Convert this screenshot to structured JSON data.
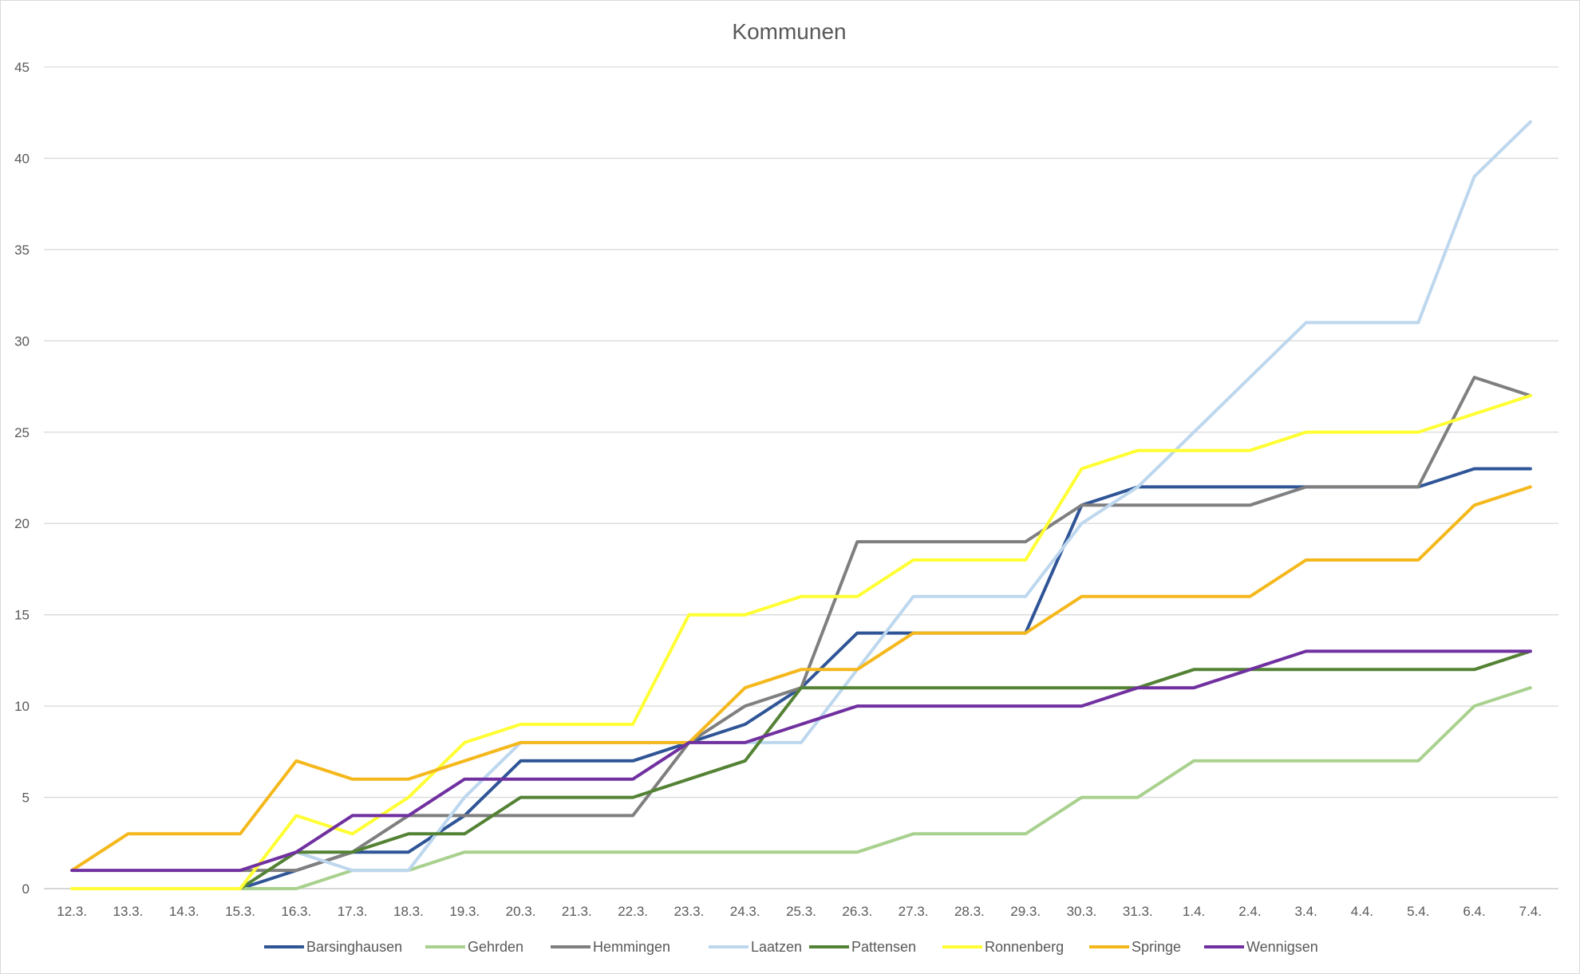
{
  "chart_data": {
    "type": "line",
    "title": "Kommunen",
    "xlabel": "",
    "ylabel": "",
    "ylim": [
      0,
      45
    ],
    "yticks": [
      0,
      5,
      10,
      15,
      20,
      25,
      30,
      35,
      40,
      45
    ],
    "grid": true,
    "legend": "bottom",
    "categories": [
      "12.3.",
      "13.3.",
      "14.3.",
      "15.3.",
      "16.3.",
      "17.3.",
      "18.3.",
      "19.3.",
      "20.3.",
      "21.3.",
      "22.3.",
      "23.3.",
      "24.3.",
      "25.3.",
      "26.3.",
      "27.3.",
      "28.3.",
      "29.3.",
      "30.3.",
      "31.3.",
      "1.4.",
      "2.4.",
      "3.4.",
      "4.4.",
      "5.4.",
      "6.4.",
      "7.4."
    ],
    "series": [
      {
        "name": "Barsinghausen",
        "color": "#2f5597",
        "values": [
          null,
          null,
          null,
          0,
          1,
          2,
          2,
          4,
          7,
          7,
          7,
          8,
          9,
          11,
          14,
          14,
          14,
          14,
          21,
          22,
          22,
          22,
          22,
          22,
          22,
          23,
          23
        ]
      },
      {
        "name": "Gehrden",
        "color": "#a9d18e",
        "values": [
          null,
          null,
          null,
          0,
          0,
          1,
          1,
          2,
          2,
          2,
          2,
          2,
          2,
          2,
          2,
          3,
          3,
          3,
          5,
          5,
          7,
          7,
          7,
          7,
          7,
          10,
          11
        ]
      },
      {
        "name": "Hemmingen",
        "color": "#7f7f7f",
        "values": [
          null,
          null,
          null,
          1,
          1,
          2,
          4,
          4,
          4,
          4,
          4,
          8,
          10,
          11,
          19,
          19,
          19,
          19,
          21,
          21,
          21,
          21,
          22,
          22,
          22,
          28,
          27
        ]
      },
      {
        "name": "Laatzen",
        "color": "#bdd7ee",
        "values": [
          null,
          null,
          null,
          0,
          2,
          1,
          1,
          5,
          8,
          8,
          8,
          8,
          8,
          8,
          12,
          16,
          16,
          16,
          20,
          22,
          25,
          28,
          31,
          31,
          31,
          39,
          42
        ]
      },
      {
        "name": "Pattensen",
        "color": "#548235",
        "values": [
          null,
          null,
          null,
          0,
          2,
          2,
          3,
          3,
          5,
          5,
          5,
          6,
          7,
          11,
          11,
          11,
          11,
          11,
          11,
          11,
          12,
          12,
          12,
          12,
          12,
          12,
          13
        ]
      },
      {
        "name": "Ronnenberg",
        "color": "#ffff33",
        "values": [
          0,
          0,
          0,
          0,
          4,
          3,
          5,
          8,
          9,
          9,
          9,
          15,
          15,
          16,
          16,
          18,
          18,
          18,
          23,
          24,
          24,
          24,
          25,
          25,
          25,
          26,
          27
        ]
      },
      {
        "name": "Springe",
        "color": "#f5b81c",
        "values": [
          1,
          3,
          3,
          3,
          7,
          6,
          6,
          7,
          8,
          8,
          8,
          8,
          11,
          12,
          12,
          14,
          14,
          14,
          16,
          16,
          16,
          16,
          18,
          18,
          18,
          21,
          22
        ]
      },
      {
        "name": "Wennigsen",
        "color": "#7030a0",
        "values": [
          1,
          1,
          1,
          1,
          2,
          4,
          4,
          6,
          6,
          6,
          6,
          8,
          8,
          9,
          10,
          10,
          10,
          10,
          10,
          11,
          11,
          12,
          13,
          13,
          13,
          13,
          13
        ]
      }
    ]
  }
}
